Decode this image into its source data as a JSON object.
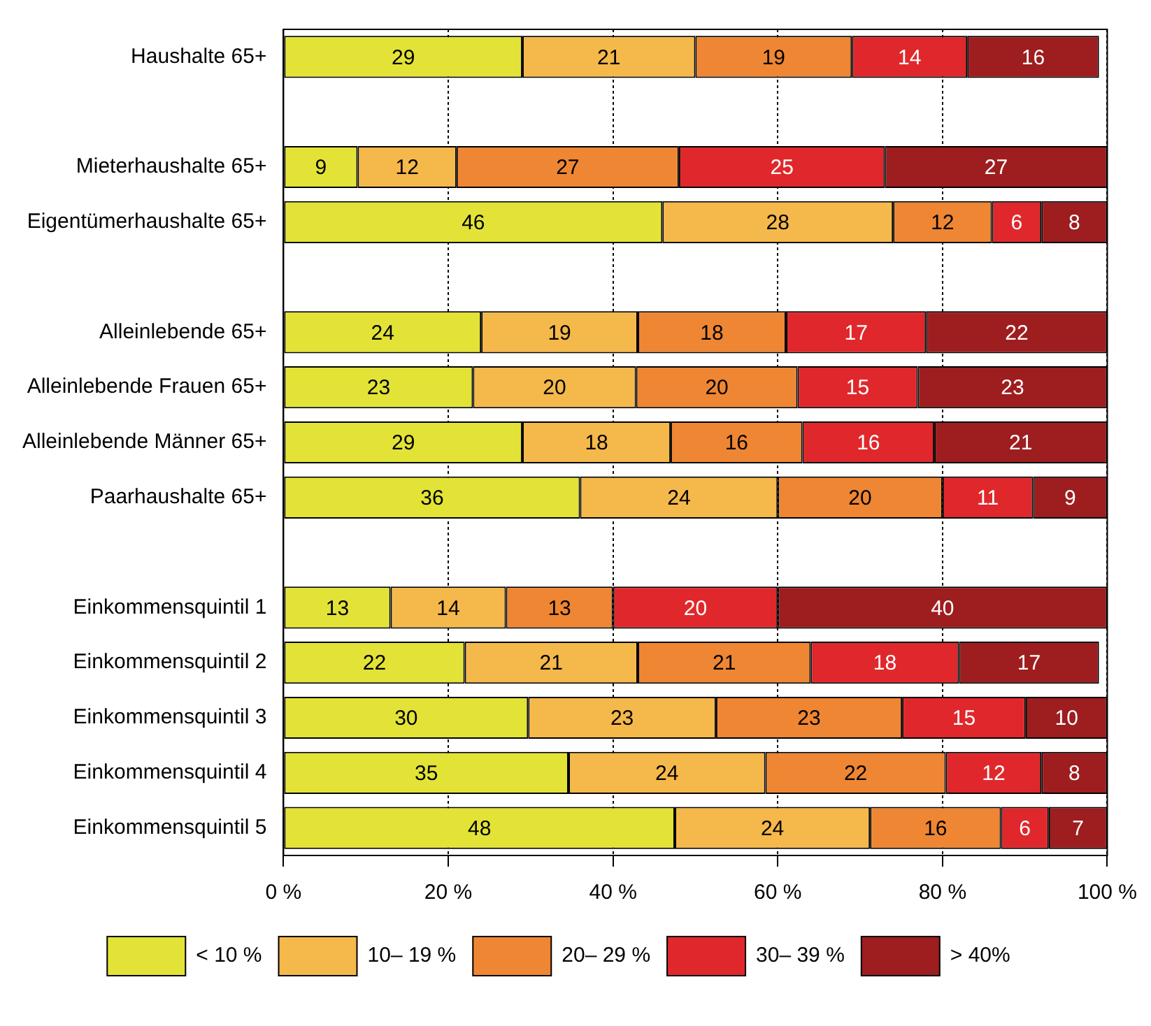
{
  "chart_data": {
    "type": "bar",
    "orientation": "horizontal",
    "stacked": true,
    "categories": [
      "Haushalte 65+",
      null,
      "Mieterhaushalte 65+",
      "Eigentümerhaushalte 65+",
      null,
      "Alleinlebende 65+",
      "Alleinlebende Frauen 65+",
      "Alleinlebende Männer 65+",
      "Paarhaushalte 65+",
      null,
      "Einkommensquintil 1",
      "Einkommensquintil 2",
      "Einkommensquintil 3",
      "Einkommensquintil 4",
      "Einkommensquintil 5"
    ],
    "series": [
      {
        "name": "< 10 %",
        "color": "#e2e336",
        "values": [
          29,
          null,
          9,
          46,
          null,
          24,
          23,
          29,
          36,
          null,
          13,
          22,
          29.7,
          34.6,
          47.5
        ],
        "value_labels": [
          "29",
          null,
          "9",
          "46",
          null,
          "24",
          "23",
          "29",
          "36",
          null,
          "13",
          "22",
          "30",
          "35",
          "48"
        ]
      },
      {
        "name": "10– 19 %",
        "color": "#f5b84a",
        "values": [
          21,
          null,
          12,
          28,
          null,
          19,
          19.8,
          18,
          24,
          null,
          14,
          21,
          22.8,
          23.9,
          23.7
        ],
        "value_labels": [
          "21",
          null,
          "12",
          "28",
          null,
          "19",
          "20",
          "18",
          "24",
          null,
          "14",
          "21",
          "23",
          "24",
          "24"
        ]
      },
      {
        "name": "20– 29 %",
        "color": "#ef8633",
        "values": [
          19,
          null,
          27,
          12,
          null,
          18,
          19.6,
          16,
          20,
          null,
          13,
          21,
          22.6,
          21.9,
          15.9
        ],
        "value_labels": [
          "19",
          null,
          "27",
          "12",
          null,
          "18",
          "20",
          "16",
          "20",
          null,
          "13",
          "21",
          "23",
          "22",
          "16"
        ]
      },
      {
        "name": "30– 39 %",
        "color": "#e0282c",
        "values": [
          14,
          null,
          25,
          6,
          null,
          17,
          14.6,
          16,
          11,
          null,
          20,
          18,
          15,
          11.6,
          5.8
        ],
        "value_labels": [
          "14",
          null,
          "25",
          "6",
          null,
          "17",
          "15",
          "16",
          "11",
          null,
          "20",
          "18",
          "15",
          "12",
          "6"
        ]
      },
      {
        "name": "> 40%",
        "color": "#9e1d1f",
        "values": [
          16,
          null,
          27,
          8,
          null,
          22,
          23,
          21,
          9,
          null,
          40,
          17,
          9.9,
          8,
          7.1
        ],
        "value_labels": [
          "16",
          null,
          "27",
          "8",
          null,
          "22",
          "23",
          "21",
          "9",
          null,
          "40",
          "17",
          "10",
          "8",
          "7"
        ]
      }
    ],
    "xlim": [
      0,
      100
    ],
    "xticks": [
      {
        "value": 0,
        "label": "0 %"
      },
      {
        "value": 20,
        "label": "20 %"
      },
      {
        "value": 40,
        "label": "40 %"
      },
      {
        "value": 60,
        "label": "60 %"
      },
      {
        "value": 80,
        "label": "80 %"
      },
      {
        "value": 100,
        "label": "100 %"
      }
    ],
    "grid": "x",
    "legend": "bottom"
  }
}
